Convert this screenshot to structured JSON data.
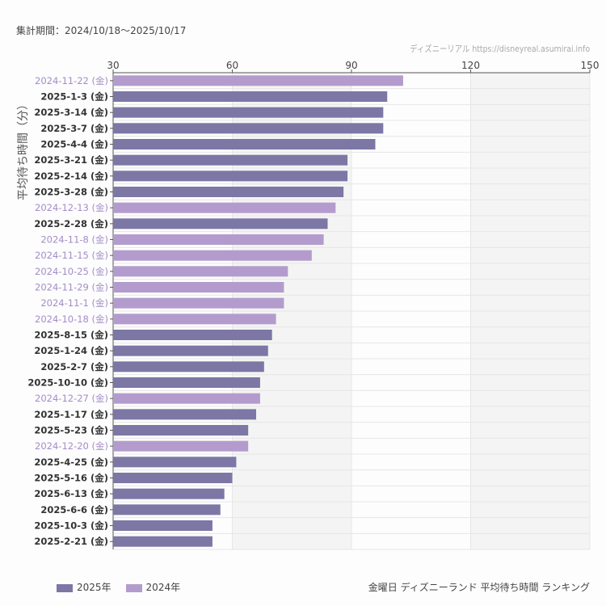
{
  "header": {
    "period": "集計期間：2024/10/18〜2025/10/17",
    "credit": "ディズニーリアル https://disneyreal.asumirai.info"
  },
  "chart_data": {
    "type": "bar",
    "orientation": "horizontal",
    "title": "金曜日 ディズニーランド 平均待ち時間 ランキング",
    "ylabel": "平均待ち時間（分）",
    "xlim": [
      30,
      150
    ],
    "xticks": [
      30,
      60,
      90,
      120,
      150
    ],
    "colors": {
      "2025年": "#7c77a5",
      "2024年": "#b39ccd"
    },
    "legend": [
      {
        "name": "2025年",
        "color": "#7c77a5"
      },
      {
        "name": "2024年",
        "color": "#b39ccd"
      }
    ],
    "categories": [
      "2024-11-22 (金)",
      "2025-1-3 (金)",
      "2025-3-14 (金)",
      "2025-3-7 (金)",
      "2025-4-4 (金)",
      "2025-3-21 (金)",
      "2025-2-14 (金)",
      "2025-3-28 (金)",
      "2024-12-13 (金)",
      "2025-2-28 (金)",
      "2024-11-8 (金)",
      "2024-11-15 (金)",
      "2024-10-25 (金)",
      "2024-11-29 (金)",
      "2024-11-1 (金)",
      "2024-10-18 (金)",
      "2025-8-15 (金)",
      "2025-1-24 (金)",
      "2025-2-7 (金)",
      "2025-10-10 (金)",
      "2024-12-27 (金)",
      "2025-1-17 (金)",
      "2025-5-23 (金)",
      "2024-12-20 (金)",
      "2025-4-25 (金)",
      "2025-5-16 (金)",
      "2025-6-13 (金)",
      "2025-6-6 (金)",
      "2025-10-3 (金)",
      "2025-2-21 (金)"
    ],
    "values": [
      103,
      99,
      98,
      98,
      96,
      89,
      89,
      88,
      86,
      84,
      83,
      80,
      74,
      73,
      73,
      71,
      70,
      69,
      68,
      67,
      67,
      66,
      64,
      64,
      61,
      60,
      58,
      57,
      55,
      55
    ],
    "series": [
      "2024年",
      "2025年",
      "2025年",
      "2025年",
      "2025年",
      "2025年",
      "2025年",
      "2025年",
      "2024年",
      "2025年",
      "2024年",
      "2024年",
      "2024年",
      "2024年",
      "2024年",
      "2024年",
      "2025年",
      "2025年",
      "2025年",
      "2025年",
      "2024年",
      "2025年",
      "2025年",
      "2024年",
      "2025年",
      "2025年",
      "2025年",
      "2025年",
      "2025年",
      "2025年"
    ]
  }
}
